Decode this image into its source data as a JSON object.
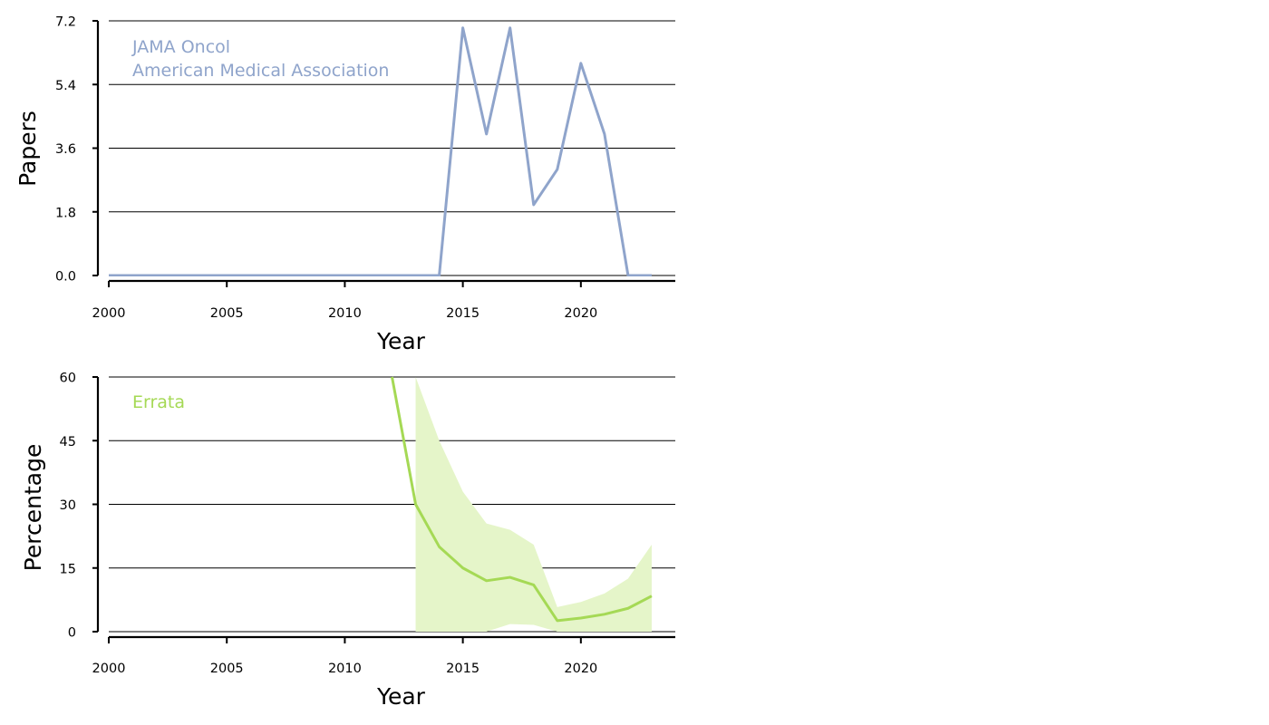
{
  "chart_data": [
    {
      "type": "line",
      "title": "",
      "xlabel": "Year",
      "ylabel": "Papers",
      "xlim": [
        2000,
        2024
      ],
      "ylim": [
        0,
        7.2
      ],
      "xticks": [
        2000,
        2005,
        2010,
        2015,
        2020
      ],
      "xtick_labels": [
        "2000",
        "2005",
        "2010",
        "2015",
        "2020"
      ],
      "yticks": [
        0,
        1.8,
        3.6,
        5.4,
        7.2
      ],
      "ytick_labels": [
        "0.0",
        "1.8",
        "3.6",
        "5.4",
        "7.2"
      ],
      "grid": "horizontal",
      "annotation_lines": [
        "JAMA Oncol",
        "American Medical Association"
      ],
      "color": "#8fa4cb",
      "series": [
        {
          "x": [
            2000,
            2001,
            2002,
            2003,
            2004,
            2005,
            2006,
            2007,
            2008,
            2009,
            2010,
            2011,
            2012,
            2013,
            2014,
            2015,
            2016,
            2017,
            2018,
            2019,
            2020,
            2021,
            2022,
            2023
          ],
          "y": [
            0,
            0,
            0,
            0,
            0,
            0,
            0,
            0,
            0,
            0,
            0,
            0,
            0,
            0,
            0,
            7,
            4,
            7,
            2,
            3,
            6,
            4,
            0,
            0
          ]
        }
      ]
    },
    {
      "type": "line",
      "title": "",
      "xlabel": "Year",
      "ylabel": "Percentage",
      "xlim": [
        2000,
        2024
      ],
      "ylim": [
        0,
        60
      ],
      "xticks": [
        2000,
        2005,
        2010,
        2015,
        2020
      ],
      "xtick_labels": [
        "2000",
        "2005",
        "2010",
        "2015",
        "2020"
      ],
      "yticks": [
        0,
        15,
        30,
        45,
        60
      ],
      "ytick_labels": [
        "0",
        "15",
        "30",
        "45",
        "60"
      ],
      "grid": "horizontal",
      "annotation_lines": [
        "Errata"
      ],
      "color": "#a5d955",
      "band_color": "#e5f5c9",
      "series": [
        {
          "x": [
            2012,
            2013,
            2014,
            2015,
            2016,
            2017,
            2018,
            2019,
            2020,
            2021,
            2022,
            2023
          ],
          "y": [
            60,
            30,
            20,
            15,
            12,
            12.8,
            11,
            2.6,
            3.2,
            4.1,
            5.5,
            8.4
          ]
        }
      ],
      "band": {
        "x": [
          2013,
          2014,
          2015,
          2016,
          2017,
          2018,
          2019,
          2020,
          2021,
          2022,
          2023
        ],
        "upper": [
          60,
          45,
          33,
          25.5,
          24,
          20.5,
          5.8,
          7,
          9,
          12.5,
          20.5
        ],
        "lower": [
          0,
          0,
          0,
          0,
          1.8,
          1.6,
          0,
          0,
          0,
          0,
          0
        ]
      }
    }
  ]
}
